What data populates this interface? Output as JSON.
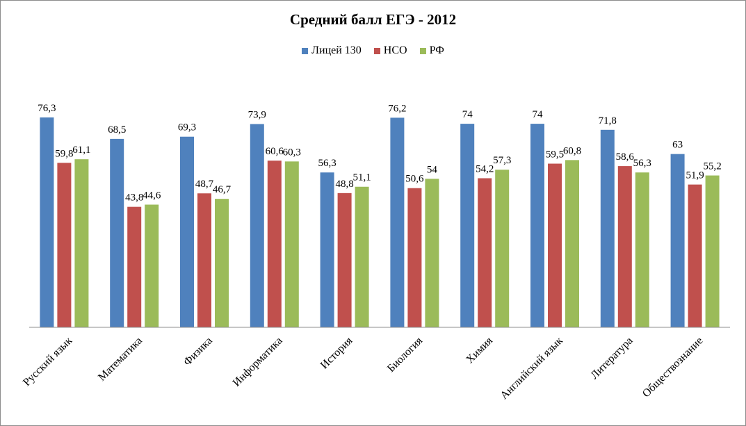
{
  "chart_data": {
    "type": "bar",
    "title": "Средний балл ЕГЭ - 2012",
    "categories": [
      "Русский язык",
      "Математика",
      "Физика",
      "Информатика",
      "История",
      "Биология",
      "Химия",
      "Английский язык",
      "Литература",
      "Обществознание"
    ],
    "series": [
      {
        "name": "Лицей 130",
        "color": "#4f81bd",
        "values": [
          76.3,
          68.5,
          69.3,
          73.9,
          56.3,
          76.2,
          74,
          74,
          71.8,
          63
        ],
        "labels": [
          "76,3",
          "68,5",
          "69,3",
          "73,9",
          "56,3",
          "76,2",
          "74",
          "74",
          "71,8",
          "63"
        ]
      },
      {
        "name": "НСО",
        "color": "#c0504d",
        "values": [
          59.8,
          43.8,
          48.7,
          60.6,
          48.8,
          50.6,
          54.2,
          59.5,
          58.6,
          51.9
        ],
        "labels": [
          "59,8",
          "43,8",
          "48,7",
          "60,6",
          "48,8",
          "50,6",
          "54,2",
          "59,5",
          "58,6",
          "51,9"
        ]
      },
      {
        "name": "РФ",
        "color": "#9bbb59",
        "values": [
          61.1,
          44.6,
          46.7,
          60.3,
          51.1,
          54,
          57.3,
          60.8,
          56.3,
          55.2
        ],
        "labels": [
          "61,1",
          "44,6",
          "46,7",
          "60,3",
          "51,1",
          "54",
          "57,3",
          "60,8",
          "56,3",
          "55,2"
        ]
      }
    ],
    "ylim": [
      0,
      80
    ],
    "grid": false,
    "legend_position": "top"
  }
}
